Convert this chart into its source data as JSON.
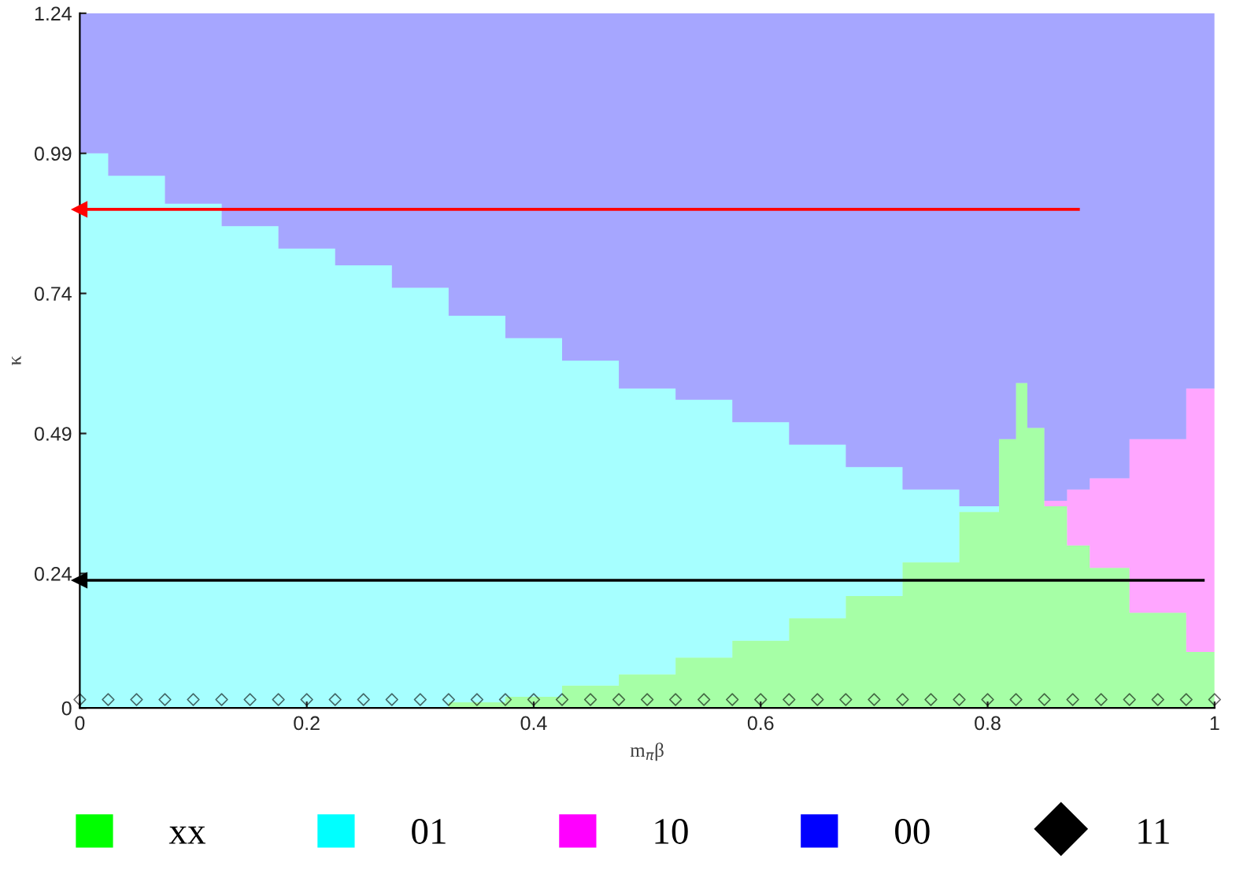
{
  "chart_data": {
    "type": "area",
    "stacked": true,
    "xlabel": "m$_{π}$β",
    "ylabel": "κ",
    "xlim": [
      0,
      1
    ],
    "ylim": [
      0,
      1.24
    ],
    "xticks": [
      0,
      0.2,
      0.4,
      0.6,
      0.8,
      1
    ],
    "yticks": [
      0,
      0.24,
      0.49,
      0.74,
      0.99,
      1.24
    ],
    "grid": false,
    "legend": "bottom",
    "x": [
      0,
      0.05,
      0.1,
      0.15,
      0.2,
      0.25,
      0.3,
      0.35,
      0.4,
      0.45,
      0.5,
      0.55,
      0.6,
      0.65,
      0.7,
      0.75,
      0.8,
      0.82,
      0.83,
      0.84,
      0.86,
      0.88,
      0.9,
      0.95,
      1
    ],
    "series": [
      {
        "name": "xx",
        "color": "#00ff00",
        "values": [
          0,
          0,
          0,
          0,
          0,
          0,
          0,
          0.01,
          0.02,
          0.04,
          0.06,
          0.09,
          0.12,
          0.16,
          0.2,
          0.26,
          0.35,
          0.48,
          0.58,
          0.5,
          0.36,
          0.29,
          0.25,
          0.17,
          0.1
        ]
      },
      {
        "name": "01",
        "color": "#00ffff",
        "values": [
          0.99,
          0.95,
          0.9,
          0.86,
          0.82,
          0.79,
          0.75,
          0.69,
          0.64,
          0.58,
          0.51,
          0.46,
          0.39,
          0.31,
          0.23,
          0.13,
          0.01,
          0,
          0,
          0,
          0,
          0,
          0,
          0,
          0
        ]
      },
      {
        "name": "10",
        "color": "#ff00ff",
        "values": [
          0,
          0,
          0,
          0,
          0,
          0,
          0,
          0,
          0,
          0,
          0,
          0,
          0,
          0,
          0,
          0,
          0,
          0,
          0,
          0,
          0.01,
          0.1,
          0.16,
          0.31,
          0.47
        ]
      },
      {
        "name": "00",
        "color": "#0000ff",
        "values": [
          0.25,
          0.29,
          0.34,
          0.38,
          0.42,
          0.45,
          0.49,
          0.54,
          0.58,
          0.62,
          0.67,
          0.69,
          0.73,
          0.77,
          0.81,
          0.85,
          0.88,
          0.76,
          0.66,
          0.74,
          0.87,
          0.85,
          0.83,
          0.76,
          0.67
        ]
      },
      {
        "name": "11",
        "type": "scatter",
        "color": "#000000",
        "marker": "diamond",
        "x": [
          0,
          0.025,
          0.05,
          0.075,
          0.1,
          0.125,
          0.15,
          0.175,
          0.2,
          0.225,
          0.25,
          0.275,
          0.3,
          0.325,
          0.35,
          0.375,
          0.4,
          0.425,
          0.45,
          0.475,
          0.5,
          0.525,
          0.55,
          0.575,
          0.6,
          0.625,
          0.65,
          0.675,
          0.7,
          0.725,
          0.75,
          0.775,
          0.8,
          0.825,
          0.85,
          0.875,
          0.9,
          0.925,
          0.95,
          0.975,
          1
        ],
        "values": [
          0.015,
          0.015,
          0.015,
          0.015,
          0.015,
          0.015,
          0.015,
          0.015,
          0.015,
          0.015,
          0.015,
          0.015,
          0.015,
          0.015,
          0.015,
          0.015,
          0.015,
          0.015,
          0.015,
          0.015,
          0.015,
          0.015,
          0.015,
          0.015,
          0.015,
          0.015,
          0.015,
          0.015,
          0.015,
          0.015,
          0.015,
          0.015,
          0.015,
          0.015,
          0.015,
          0.015,
          0.015,
          0.015,
          0.015,
          0.015,
          0.015
        ]
      },
      {
        "type": "line",
        "color": "#ff0000",
        "marker": "triangle",
        "x": [
          0.88,
          0
        ],
        "values": [
          0.89,
          0.89
        ]
      },
      {
        "type": "line",
        "color": "#000000",
        "marker": "triangle",
        "x": [
          0.99,
          0
        ],
        "values": [
          0.228,
          0.228
        ]
      }
    ]
  }
}
